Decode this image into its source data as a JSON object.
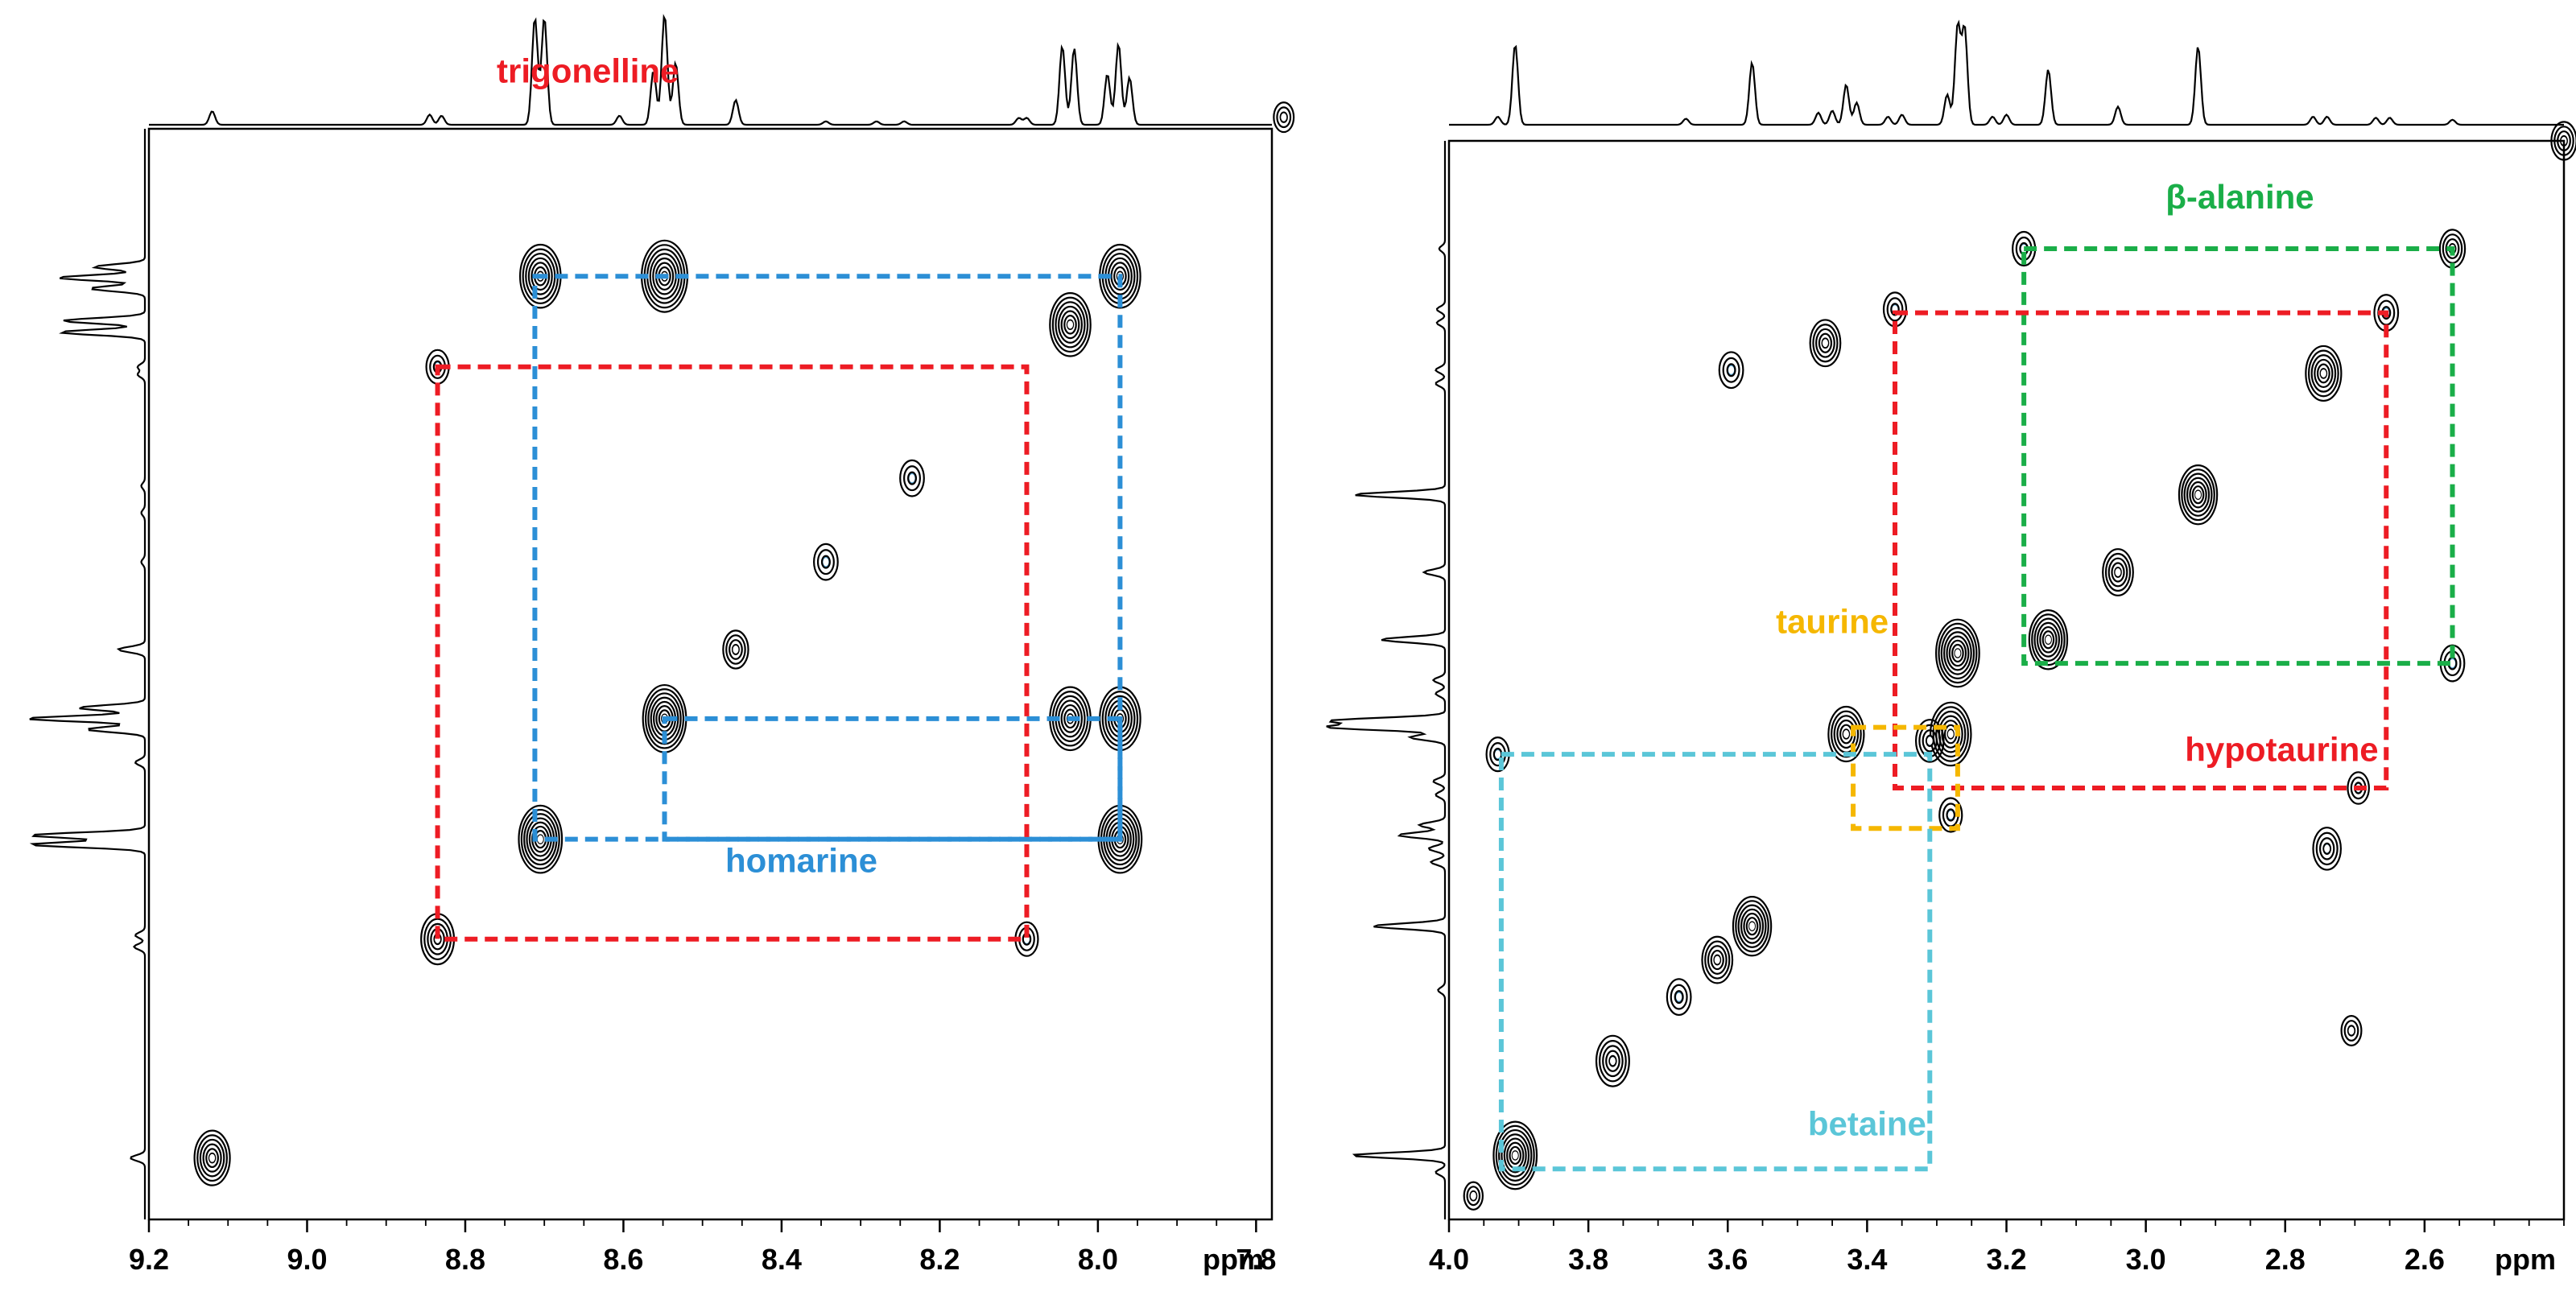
{
  "chart_data": [
    {
      "type": "scatter",
      "subtype": "2D NMR COSY spectrum (aromatic region)",
      "xlabel": "ppm",
      "x_range": [
        9.2,
        7.78
      ],
      "y_range": [
        9.2,
        7.78
      ],
      "x_ticks": [
        {
          "v": 9.2,
          "label": "9.2"
        },
        {
          "v": 9.0,
          "label": "9.0"
        },
        {
          "v": 8.8,
          "label": "8.8"
        },
        {
          "v": 8.6,
          "label": "8.6"
        },
        {
          "v": 8.4,
          "label": "8.4"
        },
        {
          "v": 8.2,
          "label": "8.2"
        },
        {
          "v": 8.0,
          "label": "8.0"
        },
        {
          "v": 7.8,
          "label": "7.8"
        }
      ],
      "projection_peaks": [
        {
          "v": 9.12,
          "h": 0.12
        },
        {
          "v": 8.845,
          "h": 0.09
        },
        {
          "v": 8.83,
          "h": 0.08
        },
        {
          "v": 8.712,
          "h": 0.95
        },
        {
          "v": 8.7,
          "h": 0.95
        },
        {
          "v": 8.605,
          "h": 0.08
        },
        {
          "v": 8.562,
          "h": 0.48
        },
        {
          "v": 8.548,
          "h": 0.98
        },
        {
          "v": 8.534,
          "h": 0.55
        },
        {
          "v": 8.458,
          "h": 0.22
        },
        {
          "v": 8.344,
          "h": 0.03
        },
        {
          "v": 8.28,
          "h": 0.03
        },
        {
          "v": 8.245,
          "h": 0.03
        },
        {
          "v": 8.1,
          "h": 0.06
        },
        {
          "v": 8.09,
          "h": 0.06
        },
        {
          "v": 8.045,
          "h": 0.7
        },
        {
          "v": 8.03,
          "h": 0.68
        },
        {
          "v": 7.988,
          "h": 0.45
        },
        {
          "v": 7.974,
          "h": 0.72
        },
        {
          "v": 7.96,
          "h": 0.42
        },
        {
          "v": 7.765,
          "h": 0.04
        }
      ],
      "cross_peaks": [
        {
          "x": 9.12,
          "y": 9.12,
          "size": 1.0
        },
        {
          "x": 8.835,
          "y": 8.835,
          "size": 0.9
        },
        {
          "x": 8.835,
          "y": 8.09,
          "size": 0.5
        },
        {
          "x": 8.705,
          "y": 8.705,
          "size": 1.3
        },
        {
          "x": 8.705,
          "y": 7.972,
          "size": 1.2
        },
        {
          "x": 8.548,
          "y": 8.548,
          "size": 1.3
        },
        {
          "x": 8.548,
          "y": 7.972,
          "size": 1.4
        },
        {
          "x": 8.458,
          "y": 8.458,
          "size": 0.6
        },
        {
          "x": 8.344,
          "y": 8.344,
          "size": 0.55
        },
        {
          "x": 8.235,
          "y": 8.235,
          "size": 0.55
        },
        {
          "x": 8.09,
          "y": 8.835,
          "size": 0.5
        },
        {
          "x": 8.035,
          "y": 8.548,
          "size": 1.2
        },
        {
          "x": 8.035,
          "y": 8.035,
          "size": 1.2
        },
        {
          "x": 7.972,
          "y": 8.705,
          "size": 1.3
        },
        {
          "x": 7.972,
          "y": 8.548,
          "size": 1.2
        },
        {
          "x": 7.972,
          "y": 7.972,
          "size": 1.2
        },
        {
          "x": 7.765,
          "y": 7.765,
          "size": 0.4
        }
      ],
      "correlations": [
        {
          "label": "homarine",
          "color": "#2c8fd6",
          "x1": 8.712,
          "x2": 7.972,
          "y1": 8.705,
          "y2": 7.972,
          "label_at": [
            8.375,
            8.748
          ]
        },
        {
          "label": "homarine",
          "color": "#2c8fd6",
          "x1": 8.548,
          "x2": 7.972,
          "y1": 8.705,
          "y2": 8.548,
          "label_at": null
        },
        {
          "label": "trigonelline",
          "color": "#ed1c24",
          "x1": 8.835,
          "x2": 8.09,
          "y1": 8.835,
          "y2": 8.09,
          "label_at": [
            8.645,
            7.72
          ]
        }
      ]
    },
    {
      "type": "scatter",
      "subtype": "2D NMR COSY spectrum (aliphatic region)",
      "xlabel": "ppm",
      "x_range": [
        4.0,
        2.4
      ],
      "y_range": [
        4.0,
        2.4
      ],
      "x_ticks": [
        {
          "v": 4.0,
          "label": "4.0"
        },
        {
          "v": 3.8,
          "label": "3.8"
        },
        {
          "v": 3.6,
          "label": "3.6"
        },
        {
          "v": 3.4,
          "label": "3.4"
        },
        {
          "v": 3.2,
          "label": "3.2"
        },
        {
          "v": 3.0,
          "label": "3.0"
        },
        {
          "v": 2.8,
          "label": "2.8"
        },
        {
          "v": 2.6,
          "label": "2.6"
        }
      ],
      "projection_peaks": [
        {
          "v": 3.93,
          "h": 0.08
        },
        {
          "v": 3.905,
          "h": 0.8
        },
        {
          "v": 3.66,
          "h": 0.06
        },
        {
          "v": 3.565,
          "h": 0.62
        },
        {
          "v": 3.47,
          "h": 0.12
        },
        {
          "v": 3.45,
          "h": 0.14
        },
        {
          "v": 3.43,
          "h": 0.4
        },
        {
          "v": 3.415,
          "h": 0.22
        },
        {
          "v": 3.37,
          "h": 0.08
        },
        {
          "v": 3.35,
          "h": 0.1
        },
        {
          "v": 3.285,
          "h": 0.3
        },
        {
          "v": 3.27,
          "h": 0.98
        },
        {
          "v": 3.26,
          "h": 0.95
        },
        {
          "v": 3.22,
          "h": 0.08
        },
        {
          "v": 3.2,
          "h": 0.1
        },
        {
          "v": 3.14,
          "h": 0.55
        },
        {
          "v": 3.04,
          "h": 0.18
        },
        {
          "v": 2.925,
          "h": 0.78
        },
        {
          "v": 2.76,
          "h": 0.08
        },
        {
          "v": 2.74,
          "h": 0.08
        },
        {
          "v": 2.67,
          "h": 0.07
        },
        {
          "v": 2.65,
          "h": 0.07
        },
        {
          "v": 2.56,
          "h": 0.05
        }
      ],
      "cross_peaks": [
        {
          "x": 3.905,
          "y": 3.905,
          "size": 1.3
        },
        {
          "x": 3.93,
          "y": 3.31,
          "size": 0.5
        },
        {
          "x": 3.965,
          "y": 3.965,
          "size": 0.35
        },
        {
          "x": 3.765,
          "y": 3.765,
          "size": 0.9
        },
        {
          "x": 3.67,
          "y": 3.67,
          "size": 0.55
        },
        {
          "x": 3.615,
          "y": 3.615,
          "size": 0.8
        },
        {
          "x": 3.565,
          "y": 3.565,
          "size": 1.1
        },
        {
          "x": 3.595,
          "y": 2.74,
          "size": 0.55
        },
        {
          "x": 3.46,
          "y": 2.7,
          "size": 0.8
        },
        {
          "x": 3.43,
          "y": 3.28,
          "size": 1.0
        },
        {
          "x": 3.36,
          "y": 2.65,
          "size": 0.5
        },
        {
          "x": 3.28,
          "y": 3.28,
          "size": 1.2
        },
        {
          "x": 3.27,
          "y": 3.16,
          "size": 1.3
        },
        {
          "x": 3.31,
          "y": 3.29,
          "size": 0.7
        },
        {
          "x": 3.14,
          "y": 3.14,
          "size": 1.1
        },
        {
          "x": 3.04,
          "y": 3.04,
          "size": 0.8
        },
        {
          "x": 2.925,
          "y": 2.925,
          "size": 1.1
        },
        {
          "x": 2.745,
          "y": 2.745,
          "size": 1.0
        },
        {
          "x": 2.655,
          "y": 2.655,
          "size": 0.55
        },
        {
          "x": 2.56,
          "y": 2.56,
          "size": 0.6
        },
        {
          "x": 2.56,
          "y": 3.175,
          "size": 0.55
        },
        {
          "x": 3.175,
          "y": 2.56,
          "size": 0.5
        },
        {
          "x": 2.695,
          "y": 3.36,
          "size": 0.45
        },
        {
          "x": 2.705,
          "y": 3.72,
          "size": 0.4
        },
        {
          "x": 2.74,
          "y": 3.45,
          "size": 0.7
        },
        {
          "x": 3.28,
          "y": 3.4,
          "size": 0.5
        },
        {
          "x": 2.4,
          "y": 2.4,
          "size": 0.6
        }
      ],
      "correlations": [
        {
          "label": "β-alanine",
          "color": "#1aae48",
          "x1": 3.175,
          "x2": 2.56,
          "y1": 2.56,
          "y2": 3.175,
          "label_at": [
            2.865,
            2.5
          ]
        },
        {
          "label": "hypotaurine",
          "color": "#ed1c24",
          "x1": 3.36,
          "x2": 2.655,
          "y1": 2.655,
          "y2": 3.36,
          "label_at": [
            2.805,
            3.32
          ]
        },
        {
          "label": "taurine",
          "color": "#f5b700",
          "x1": 3.42,
          "x2": 3.27,
          "y1": 3.27,
          "y2": 3.42,
          "label_at": [
            3.45,
            3.13
          ]
        },
        {
          "label": "betaine",
          "color": "#5bc6d8",
          "x1": 3.925,
          "x2": 3.31,
          "y1": 3.31,
          "y2": 3.925,
          "label_at": [
            3.4,
            3.875
          ]
        }
      ]
    }
  ]
}
